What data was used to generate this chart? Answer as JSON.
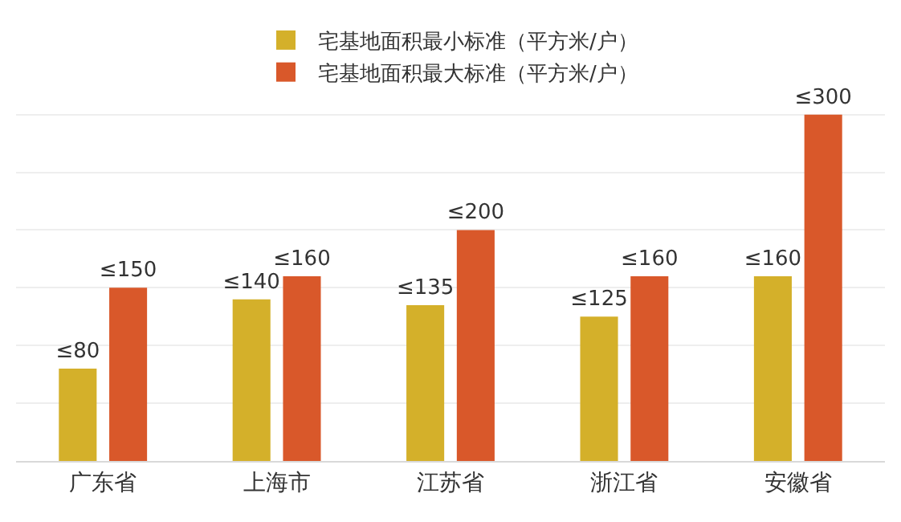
{
  "chart_data": {
    "type": "bar",
    "categories": [
      "广东省",
      "上海市",
      "江苏省",
      "浙江省",
      "安徽省"
    ],
    "series": [
      {
        "name": "宅基地面积最小标准（平方米/户）",
        "color": "#d4b02a",
        "values": [
          80,
          140,
          135,
          125,
          160
        ],
        "value_labels": [
          "≤80",
          "≤140",
          "≤135",
          "≤125",
          "≤160"
        ]
      },
      {
        "name": "宅基地面积最大标准（平方米/户）",
        "color": "#d9582a",
        "values": [
          150,
          160,
          200,
          160,
          300
        ],
        "value_labels": [
          "≤150",
          "≤160",
          "≤200",
          "≤160",
          "≤300"
        ]
      }
    ],
    "yticks": [
      {
        "value": 0,
        "label": null
      },
      {
        "value": 50,
        "label": null
      },
      {
        "value": 100,
        "label": null
      },
      {
        "value": 150,
        "label": null
      },
      {
        "value": 200,
        "label": null
      },
      {
        "value": 250,
        "label": null
      },
      {
        "value": 300,
        "label": null
      }
    ],
    "tick_labels": "x",
    "grid": "y",
    "legend": "top"
  }
}
